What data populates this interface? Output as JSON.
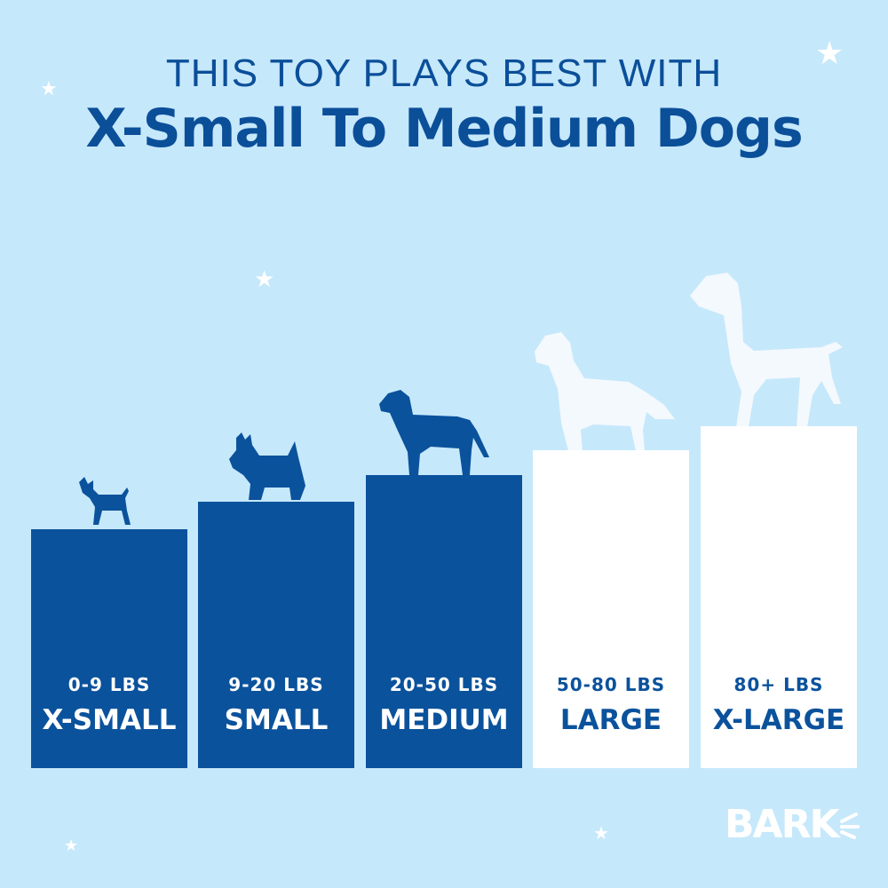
{
  "header": {
    "line1": "THIS TOY PLAYS BEST WITH",
    "line2": "X-Small To Medium Dogs"
  },
  "sizes": [
    {
      "weight": "0-9 LBS",
      "label": "X-SMALL",
      "recommended": true
    },
    {
      "weight": "9-20 LBS",
      "label": "SMALL",
      "recommended": true
    },
    {
      "weight": "20-50 LBS",
      "label": "MEDIUM",
      "recommended": true
    },
    {
      "weight": "50-80 LBS",
      "label": "LARGE",
      "recommended": false
    },
    {
      "weight": "80+ LBS",
      "label": "X-LARGE",
      "recommended": false
    }
  ],
  "logo": "BARK",
  "colors": {
    "background": "#c6e8fb",
    "recommended": "#0b529c",
    "not_recommended": "#ffffff"
  }
}
